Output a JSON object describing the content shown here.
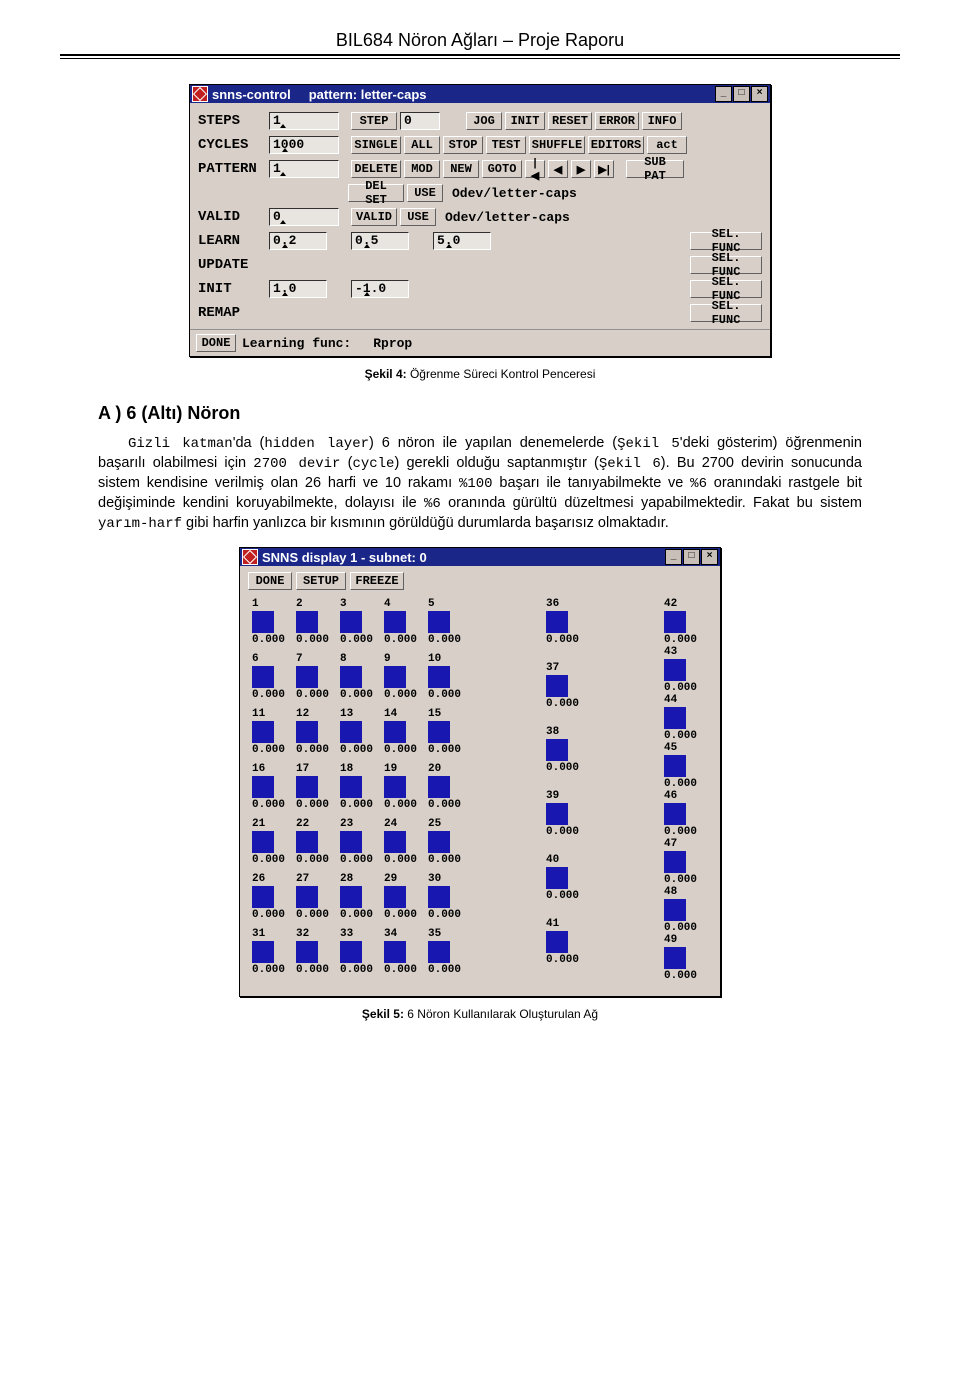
{
  "page_header": "BIL684 Nöron Ağları – Proje Raporu",
  "ctrl": {
    "title1": "snns-control",
    "title2": "pattern: letter-caps",
    "lbl_steps": "STEPS",
    "lbl_cycles": "CYCLES",
    "lbl_pattern": "PATTERN",
    "lbl_valid": "VALID",
    "lbl_learn": "LEARN",
    "lbl_update": "UPDATE",
    "lbl_init": "INIT",
    "lbl_remap": "REMAP",
    "val_steps": "1",
    "val_cycles": "1000",
    "val_pattern": "1",
    "val_valid": "0",
    "val_learn1": "0.2",
    "val_learn2": "0.5",
    "val_learn3": "5.0",
    "val_init1": "1.0",
    "val_init2": "-1.0",
    "btn_step": "STEP",
    "btn_step_val": "0",
    "btn_jog": "JOG",
    "btn_init": "INIT",
    "btn_reset": "RESET",
    "btn_error": "ERROR",
    "btn_info": "INFO",
    "btn_single": "SINGLE",
    "btn_all": "ALL",
    "btn_stop": "STOP",
    "btn_test": "TEST",
    "btn_shuffle": "SHUFFLE",
    "btn_editors": "EDITORS",
    "btn_act": "act",
    "btn_delete": "DELETE",
    "btn_mod": "MOD",
    "btn_new": "NEW",
    "btn_goto": "GOTO",
    "btn_subpat": "SUB PAT",
    "btn_delset": "DEL SET",
    "btn_use": "USE",
    "txt_odev": "Odev/letter-caps",
    "btn_valid": "VALID",
    "btn_selfunc": "SEL. FUNC",
    "btn_done": "DONE",
    "lbl_learnfunc": "Learning func:",
    "val_learnfunc": "Rprop"
  },
  "caption1_bold": "Şekil 4:",
  "caption1_rest": " Öğrenme Süreci Kontrol Penceresi",
  "section_h": "A ) 6 (Altı) Nöron",
  "p1a": "Gizli katman",
  "p1b": "'da (",
  "p1c": "hidden layer",
  "p1d": ") 6 nöron ile yapılan denemelerde (",
  "p1e": "Şekil 5",
  "p1f": "'deki gösterim) öğrenmenin başarılı olabilmesi için ",
  "p1g": "2700 devir",
  "p1h": " (",
  "p1i": "cycle",
  "p1j": ") gerekli olduğu saptanmıştır (",
  "p1k": "Şekil 6",
  "p1l": "). Bu 2700 devirin sonucunda sistem kendisine verilmiş olan 26 harfi ve 10 rakamı ",
  "p1m": "%100",
  "p1n": " başarı ile tanıyabilmekte ve ",
  "p1o": "%6",
  "p1p": " oranındaki rastgele bit değişiminde kendini koruyabilmekte, dolayısı ile ",
  "p1q": "%6",
  "p1r": " oranında gürültü düzeltmesi yapabilmektedir. Fakat bu sistem ",
  "p1s": "yarım-harf",
  "p1t": " gibi harfin yanlızca bir kısmının görüldüğü durumlarda başarısız olmaktadır.",
  "disp": {
    "title": "SNNS display 1 - subnet: 0",
    "btn_done": "DONE",
    "btn_setup": "SETUP",
    "btn_freeze": "FREEZE",
    "zerotxt": "0.000",
    "colA_ids": [
      "1",
      "2",
      "3",
      "4",
      "5",
      "6",
      "7",
      "8",
      "9",
      "10",
      "11",
      "12",
      "13",
      "14",
      "15",
      "16",
      "17",
      "18",
      "19",
      "20",
      "21",
      "22",
      "23",
      "24",
      "25",
      "26",
      "27",
      "28",
      "29",
      "30",
      "31",
      "32",
      "33",
      "34",
      "35"
    ],
    "colB_ids": [
      "36",
      "37",
      "38",
      "39",
      "40",
      "41"
    ],
    "colC_ids": [
      "42",
      "43",
      "44",
      "45",
      "46",
      "47",
      "48",
      "49"
    ],
    "box_color": "#1818b0",
    "bg_color": "#d8d0c8"
  },
  "caption2_bold": "Şekil 5:",
  "caption2_rest": " 6 Nöron Kullanılarak Oluşturulan Ağ"
}
